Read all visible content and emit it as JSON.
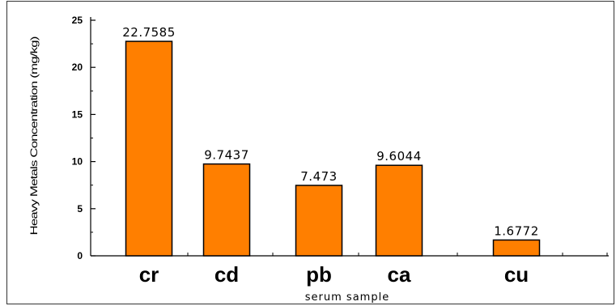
{
  "chart_data": {
    "type": "bar",
    "categories": [
      "cr",
      "cd",
      "pb",
      "ca",
      "cu"
    ],
    "values": [
      22.7585,
      9.7437,
      7.473,
      9.6044,
      1.6772
    ],
    "data_labels": [
      "22.7585",
      "9.7437",
      "7.473",
      "9.6044",
      "1.6772"
    ],
    "xlabel": "serum sample",
    "ylabel": "Heavy Metals Concentration (mg/kg)",
    "ylim": [
      0,
      25
    ],
    "yticks": [
      "0",
      "5",
      "10",
      "15",
      "20",
      "25"
    ],
    "grid": false,
    "legend": "none",
    "bar_color": "#FF7F00",
    "bar_edge_color": "#000000"
  }
}
